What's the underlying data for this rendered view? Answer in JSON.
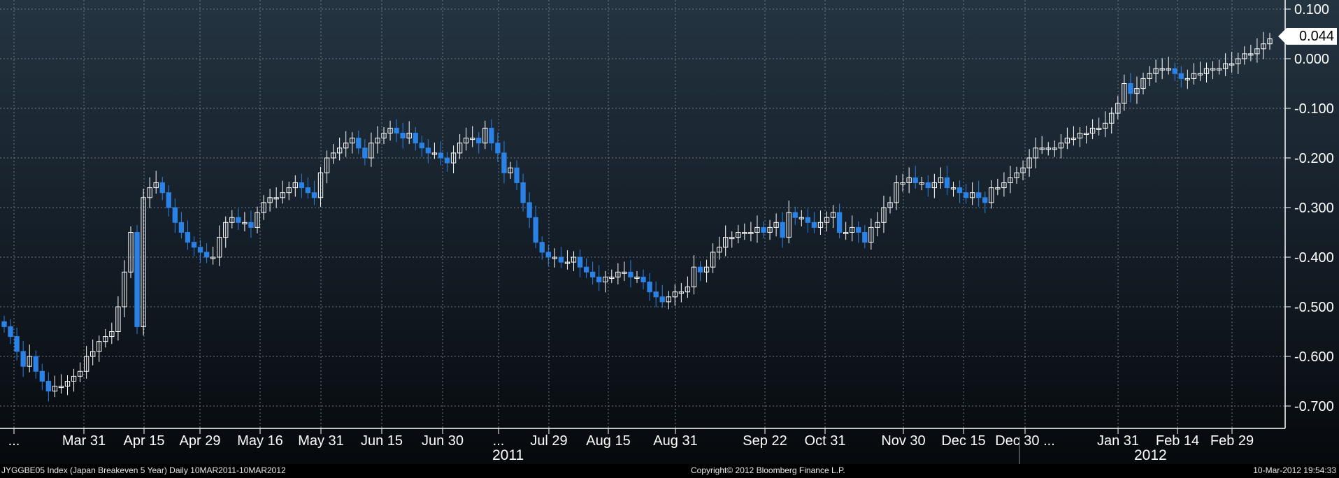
{
  "chart_data": {
    "type": "candlestick",
    "title": "",
    "ylim": [
      -0.73,
      0.11
    ],
    "grid": true,
    "y_ticks": [
      "0.100",
      "0.000",
      "-0.100",
      "-0.200",
      "-0.300",
      "-0.400",
      "-0.500",
      "-0.600",
      "-0.700"
    ],
    "x_tick_labels": [
      "...",
      "Mar 31",
      "Apr 15",
      "Apr 29",
      "May 16",
      "May 31",
      "Jun 15",
      "Jun 30",
      "...",
      "Jul 29",
      "Aug 15",
      "Aug 31",
      "Sep 22",
      "Oct 31",
      "Nov 30",
      "Dec 15",
      "Dec 30 ...",
      "Jan 31",
      "Feb 14",
      "Feb 29"
    ],
    "year_labels": [
      "2011",
      "2012"
    ],
    "last_value": "0.044",
    "candle_colors": {
      "up": "#ffffff",
      "down": "#2b82e6"
    },
    "series": [
      {
        "values": [
          -0.54,
          -0.56,
          -0.59,
          -0.62,
          -0.6,
          -0.63,
          -0.65,
          -0.67,
          -0.66,
          -0.66,
          -0.65,
          -0.64,
          -0.63,
          -0.6,
          -0.59,
          -0.57,
          -0.56,
          -0.55,
          -0.5,
          -0.43,
          -0.35,
          -0.54,
          -0.28,
          -0.26,
          -0.25,
          -0.27,
          -0.3,
          -0.33,
          -0.35,
          -0.37,
          -0.38,
          -0.39,
          -0.4,
          -0.4,
          -0.36,
          -0.33,
          -0.32,
          -0.33,
          -0.33,
          -0.34,
          -0.31,
          -0.29,
          -0.28,
          -0.28,
          -0.27,
          -0.26,
          -0.25,
          -0.26,
          -0.27,
          -0.28,
          -0.23,
          -0.2,
          -0.19,
          -0.18,
          -0.17,
          -0.16,
          -0.18,
          -0.2,
          -0.17,
          -0.16,
          -0.15,
          -0.14,
          -0.15,
          -0.16,
          -0.15,
          -0.17,
          -0.18,
          -0.19,
          -0.19,
          -0.2,
          -0.21,
          -0.19,
          -0.17,
          -0.16,
          -0.16,
          -0.17,
          -0.14,
          -0.17,
          -0.19,
          -0.23,
          -0.22,
          -0.25,
          -0.29,
          -0.32,
          -0.37,
          -0.39,
          -0.4,
          -0.4,
          -0.41,
          -0.41,
          -0.4,
          -0.42,
          -0.43,
          -0.44,
          -0.45,
          -0.44,
          -0.44,
          -0.43,
          -0.43,
          -0.44,
          -0.44,
          -0.45,
          -0.47,
          -0.48,
          -0.49,
          -0.48,
          -0.47,
          -0.47,
          -0.46,
          -0.42,
          -0.43,
          -0.42,
          -0.39,
          -0.38,
          -0.36,
          -0.36,
          -0.35,
          -0.35,
          -0.35,
          -0.34,
          -0.35,
          -0.34,
          -0.33,
          -0.36,
          -0.31,
          -0.32,
          -0.32,
          -0.33,
          -0.34,
          -0.33,
          -0.32,
          -0.31,
          -0.35,
          -0.35,
          -0.34,
          -0.35,
          -0.37,
          -0.34,
          -0.33,
          -0.3,
          -0.29,
          -0.25,
          -0.25,
          -0.24,
          -0.25,
          -0.25,
          -0.26,
          -0.25,
          -0.24,
          -0.26,
          -0.26,
          -0.27,
          -0.28,
          -0.27,
          -0.28,
          -0.29,
          -0.26,
          -0.26,
          -0.25,
          -0.24,
          -0.23,
          -0.22,
          -0.2,
          -0.18,
          -0.18,
          -0.18,
          -0.18,
          -0.17,
          -0.16,
          -0.16,
          -0.15,
          -0.15,
          -0.14,
          -0.14,
          -0.13,
          -0.11,
          -0.09,
          -0.05,
          -0.07,
          -0.06,
          -0.04,
          -0.03,
          -0.02,
          -0.02,
          -0.02,
          -0.03,
          -0.04,
          -0.04,
          -0.03,
          -0.03,
          -0.02,
          -0.02,
          -0.02,
          -0.01,
          -0.01,
          0.0,
          0.01,
          0.01,
          0.02,
          0.03,
          0.04
        ]
      }
    ]
  },
  "footer": {
    "left": "JYGGBE05 Index (Japan Breakeven 5 Year) Daily 10MAR2011-10MAR2012",
    "center": "Copyright© 2012 Bloomberg Finance L.P.",
    "right": "10-Mar-2012 19:54:33"
  }
}
